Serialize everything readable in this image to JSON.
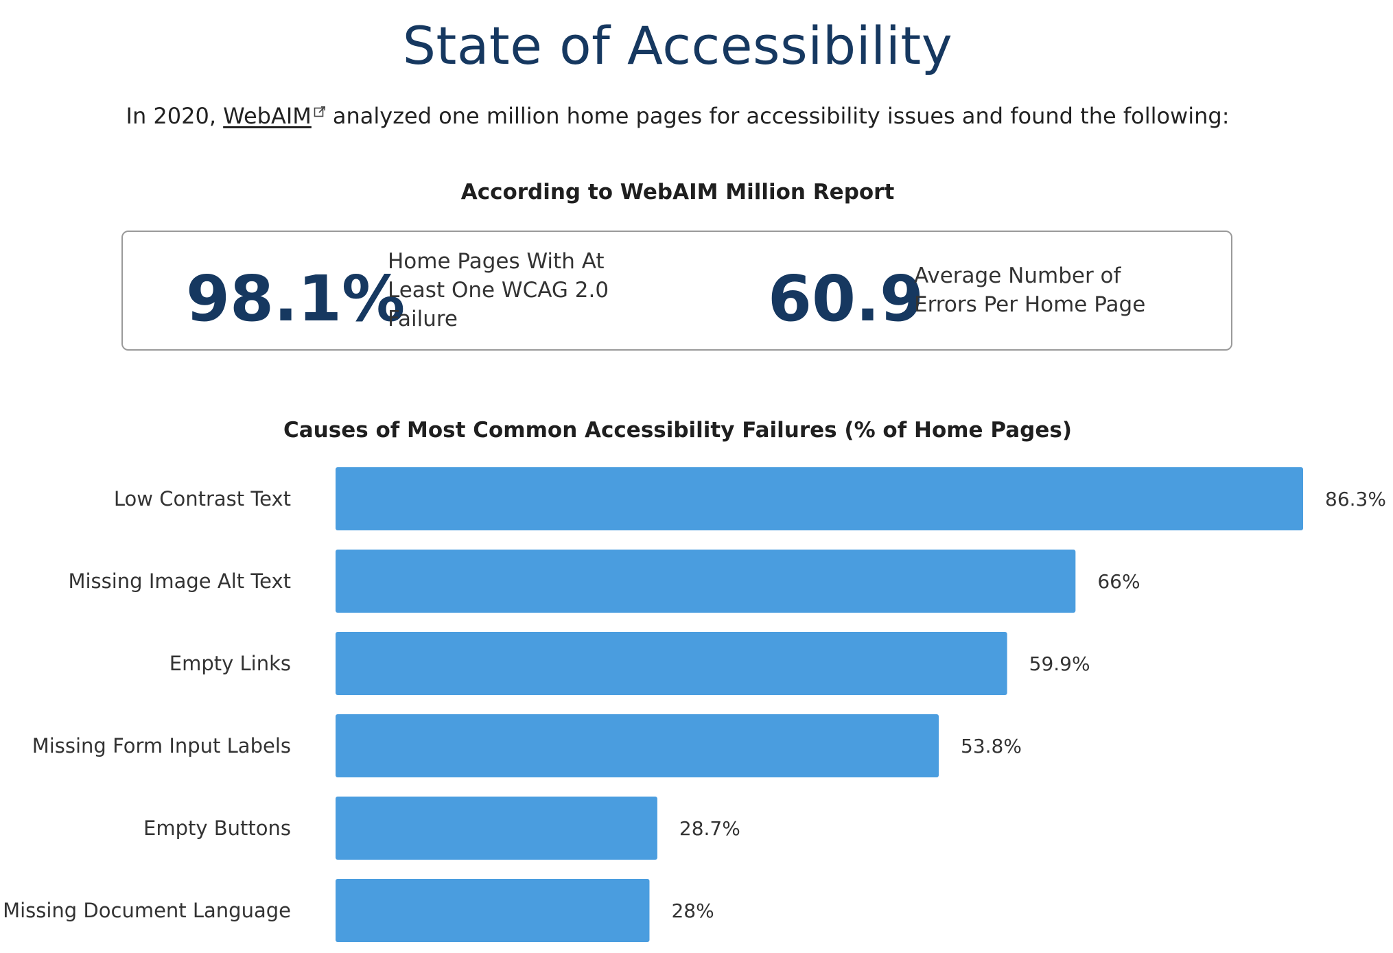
{
  "page": {
    "title": "State of Accessibility",
    "intro": {
      "prefix": "In 2020, ",
      "link_text": "WebAIM",
      "suffix": "analyzed one million home pages for accessibility issues and found the following:"
    },
    "report_heading": "According to WebAIM Million Report",
    "stats": [
      {
        "value": "98.1%",
        "label_lines": [
          "Home Pages With At",
          "Least One WCAG 2.0",
          "Failure"
        ]
      },
      {
        "value": "60.9",
        "label_lines": [
          "Average Number of",
          "Errors Per Home Page"
        ]
      }
    ],
    "colors": {
      "title": "#163860",
      "bar": "#4a9ddf"
    }
  },
  "chart_data": {
    "type": "bar",
    "orientation": "horizontal",
    "title": "Causes of Most Common Accessibility Failures (% of Home Pages)",
    "categories": [
      "Low Contrast Text",
      "Missing Image Alt Text",
      "Empty Links",
      "Missing Form Input Labels",
      "Empty Buttons",
      "Missing Document Language"
    ],
    "values": [
      86.3,
      66,
      59.9,
      53.8,
      28.7,
      28
    ],
    "value_labels": [
      "86.3%",
      "66%",
      "59.9%",
      "53.8%",
      "28.7%",
      "28%"
    ],
    "xlim": [
      0,
      86.3
    ],
    "grid": false,
    "legend": "none"
  }
}
